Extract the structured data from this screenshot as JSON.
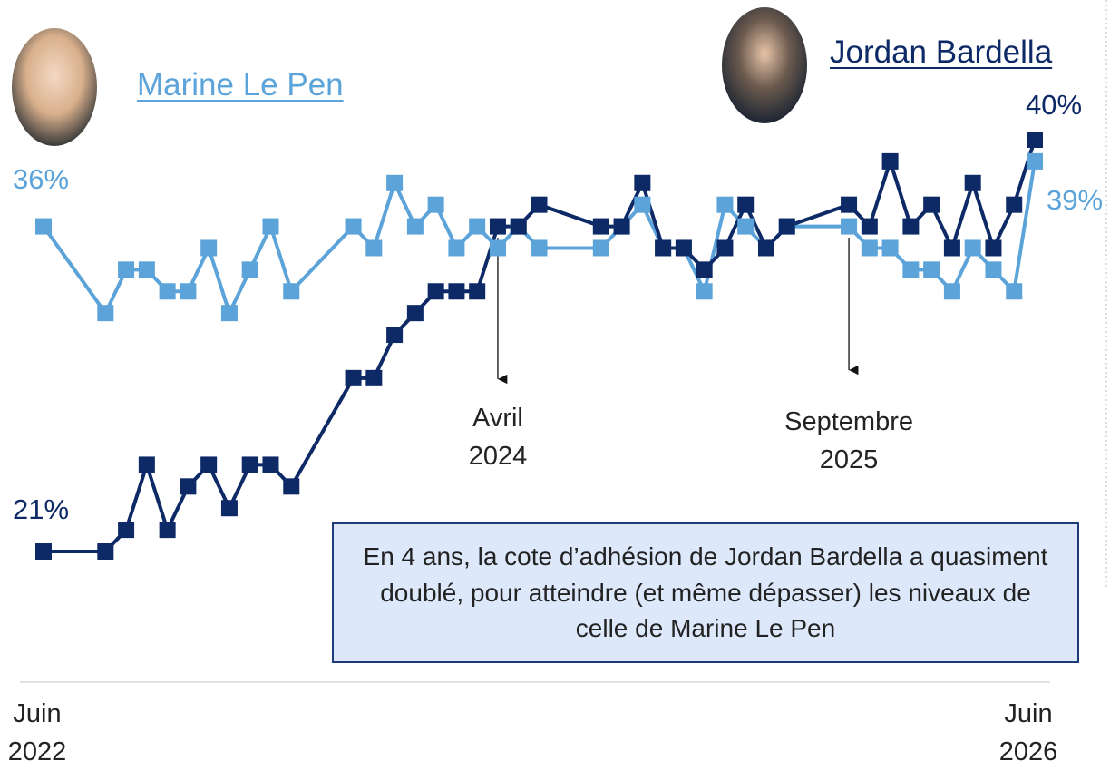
{
  "chart_data": {
    "type": "line",
    "x": [
      0,
      3,
      4,
      5,
      6,
      7,
      8,
      9,
      10,
      11,
      12,
      15,
      16,
      17,
      18,
      19,
      20,
      21,
      22,
      23,
      24,
      27,
      28,
      29,
      30,
      31,
      32,
      33,
      34,
      35,
      36,
      39,
      40,
      41,
      42,
      43,
      44,
      45,
      46,
      47,
      48
    ],
    "xlim": [
      0,
      48
    ],
    "xticks": [
      {
        "value": 0,
        "label": "Juin 2022"
      },
      {
        "value": 48,
        "label": "Juin 2026"
      }
    ],
    "ylim": [
      19,
      42
    ],
    "series": [
      {
        "name": "Marine Le Pen",
        "color": "#5ba3d9",
        "values": [
          36,
          32,
          34,
          34,
          33,
          33,
          35,
          32,
          34,
          36,
          33,
          36,
          35,
          38,
          36,
          37,
          35,
          36,
          35,
          36,
          35,
          35,
          36,
          37,
          35,
          35,
          33,
          37,
          36,
          35,
          36,
          36,
          35,
          35,
          34,
          34,
          33,
          35,
          34,
          33,
          39
        ],
        "value_labels": [
          "36%",
          null,
          null,
          null,
          null,
          null,
          null,
          null,
          null,
          null,
          null,
          null,
          null,
          null,
          null,
          null,
          null,
          null,
          null,
          null,
          null,
          null,
          null,
          null,
          null,
          null,
          null,
          null,
          null,
          null,
          null,
          null,
          null,
          null,
          null,
          null,
          null,
          null,
          null,
          null,
          "39%"
        ]
      },
      {
        "name": "Jordan Bardella",
        "color": "#0d2a66",
        "values": [
          21,
          21,
          22,
          25,
          22,
          24,
          25,
          23,
          25,
          25,
          24,
          29,
          29,
          31,
          32,
          33,
          33,
          33,
          36,
          36,
          37,
          36,
          36,
          38,
          35,
          35,
          34,
          35,
          37,
          35,
          36,
          37,
          36,
          39,
          36,
          37,
          35,
          38,
          35,
          37,
          40
        ],
        "value_labels": [
          "21%",
          null,
          null,
          null,
          null,
          null,
          null,
          null,
          null,
          null,
          null,
          null,
          null,
          null,
          null,
          null,
          null,
          null,
          null,
          null,
          null,
          null,
          null,
          null,
          null,
          null,
          null,
          null,
          null,
          null,
          null,
          null,
          null,
          null,
          null,
          null,
          null,
          null,
          null,
          null,
          "40%"
        ]
      }
    ],
    "annotations": [
      {
        "text": "Avril 2024",
        "x": 22
      },
      {
        "text": "Septembre 2025",
        "x": 39
      }
    ],
    "note": "En 4 ans, la cote d’adhésion de Jordan Bardella a quasiment doublé, pour atteindre (et même dépasser) les niveaux de celle de Marine Le Pen"
  }
}
